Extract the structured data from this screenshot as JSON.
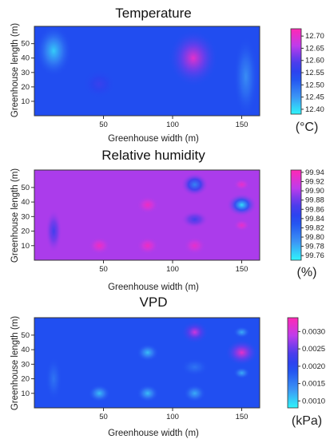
{
  "chart_data": [
    {
      "type": "heatmap",
      "title": "Temperature",
      "xlabel": "Greenhouse width (m)",
      "ylabel": "Greenhouse length (m)",
      "x_ticks": [
        50,
        100,
        150
      ],
      "y_ticks": [
        10,
        20,
        30,
        40,
        50
      ],
      "xlim": [
        0,
        163
      ],
      "ylim": [
        0,
        62
      ],
      "unit": "(°C)",
      "colorbar": {
        "min": 12.38,
        "max": 12.73,
        "ticks": [
          "12.40",
          "12.45",
          "12.50",
          "12.55",
          "12.60",
          "12.65",
          "12.70"
        ],
        "tick_values": [
          12.4,
          12.45,
          12.5,
          12.55,
          12.6,
          12.65,
          12.7
        ]
      },
      "base_value": 12.53,
      "features": [
        {
          "x": 14,
          "y": 45,
          "rx": 13,
          "ry": 18,
          "value": 12.41
        },
        {
          "x": 47,
          "y": 22,
          "rx": 12,
          "ry": 10,
          "value": 12.57
        },
        {
          "x": 115,
          "y": 40,
          "rx": 18,
          "ry": 20,
          "value": 12.7
        },
        {
          "x": 153,
          "y": 27,
          "rx": 9,
          "ry": 28,
          "value": 12.46
        }
      ]
    },
    {
      "type": "heatmap",
      "title": "Relative humidity",
      "xlabel": "Greenhouse width (m)",
      "ylabel": "Greenhouse length (m)",
      "x_ticks": [
        50,
        100,
        150
      ],
      "y_ticks": [
        10,
        20,
        30,
        40,
        50
      ],
      "xlim": [
        0,
        163
      ],
      "ylim": [
        0,
        62
      ],
      "unit": "(%)",
      "colorbar": {
        "min": 99.75,
        "max": 99.945,
        "ticks": [
          "99.94",
          "99.92",
          "99.90",
          "99.88",
          "99.86",
          "99.84",
          "99.82",
          "99.80",
          "99.78",
          "99.76"
        ],
        "tick_values": [
          99.94,
          99.92,
          99.9,
          99.88,
          99.86,
          99.84,
          99.82,
          99.8,
          99.78,
          99.76
        ]
      },
      "base_value": 99.9,
      "features": [
        {
          "x": 116,
          "y": 52,
          "rx": 10,
          "ry": 8,
          "value": 99.8
        },
        {
          "x": 150,
          "y": 38,
          "rx": 11,
          "ry": 8,
          "value": 99.76
        },
        {
          "x": 150,
          "y": 52,
          "rx": 6,
          "ry": 4,
          "value": 99.93
        },
        {
          "x": 150,
          "y": 24,
          "rx": 6,
          "ry": 4,
          "value": 99.93
        },
        {
          "x": 82,
          "y": 38,
          "rx": 8,
          "ry": 6,
          "value": 99.935
        },
        {
          "x": 47,
          "y": 10,
          "rx": 8,
          "ry": 6,
          "value": 99.935
        },
        {
          "x": 82,
          "y": 10,
          "rx": 8,
          "ry": 6,
          "value": 99.935
        },
        {
          "x": 116,
          "y": 10,
          "rx": 8,
          "ry": 6,
          "value": 99.93
        },
        {
          "x": 14,
          "y": 20,
          "rx": 6,
          "ry": 15,
          "value": 99.86
        },
        {
          "x": 116,
          "y": 28,
          "rx": 10,
          "ry": 6,
          "value": 99.86
        }
      ]
    },
    {
      "type": "heatmap",
      "title": "VPD",
      "xlabel": "Greenhouse width (m)",
      "ylabel": "Greenhouse length (m)",
      "x_ticks": [
        50,
        100,
        150
      ],
      "y_ticks": [
        10,
        20,
        30,
        40,
        50
      ],
      "xlim": [
        0,
        163
      ],
      "ylim": [
        0,
        62
      ],
      "unit": "(kPa)",
      "colorbar": {
        "min": 0.0008,
        "max": 0.0034,
        "ticks": [
          "0.0030",
          "0.0025",
          "0.0020",
          "0.0015",
          "0.0010"
        ],
        "tick_values": [
          0.003,
          0.0025,
          0.002,
          0.0015,
          0.001
        ]
      },
      "base_value": 0.0019,
      "features": [
        {
          "x": 116,
          "y": 52,
          "rx": 10,
          "ry": 8,
          "value": 0.003
        },
        {
          "x": 150,
          "y": 38,
          "rx": 12,
          "ry": 9,
          "value": 0.0032
        },
        {
          "x": 82,
          "y": 38,
          "rx": 8,
          "ry": 6,
          "value": 0.0011
        },
        {
          "x": 47,
          "y": 10,
          "rx": 8,
          "ry": 6,
          "value": 0.0011
        },
        {
          "x": 82,
          "y": 10,
          "rx": 8,
          "ry": 6,
          "value": 0.0011
        },
        {
          "x": 116,
          "y": 10,
          "rx": 8,
          "ry": 6,
          "value": 0.0012
        },
        {
          "x": 150,
          "y": 52,
          "rx": 6,
          "ry": 4,
          "value": 0.0012
        },
        {
          "x": 150,
          "y": 24,
          "rx": 6,
          "ry": 4,
          "value": 0.0012
        },
        {
          "x": 14,
          "y": 20,
          "rx": 6,
          "ry": 15,
          "value": 0.0016
        },
        {
          "x": 116,
          "y": 28,
          "rx": 10,
          "ry": 6,
          "value": 0.0016
        }
      ]
    }
  ]
}
